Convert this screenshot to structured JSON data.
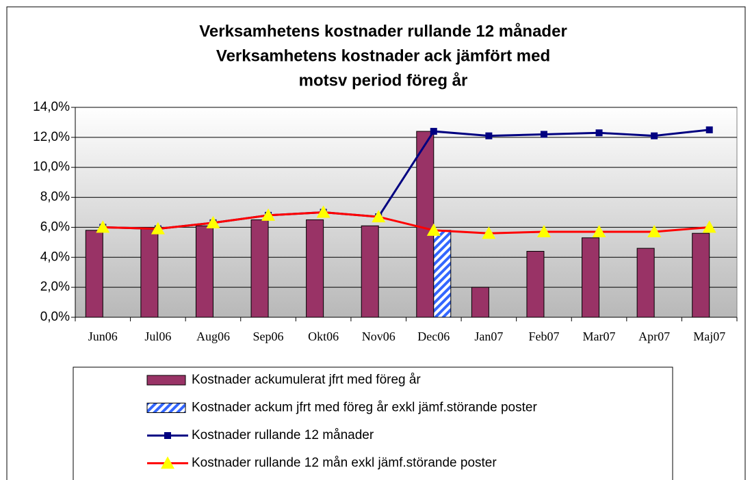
{
  "chart_data": {
    "type": "bar",
    "title": [
      "Verksamhetens kostnader rullande 12 månader",
      "Verksamhetens kostnader ack jämfört med",
      "motsv period föreg år"
    ],
    "categories": [
      "Jun06",
      "Jul06",
      "Aug06",
      "Sep06",
      "Okt06",
      "Nov06",
      "Dec06",
      "Jan07",
      "Feb07",
      "Mar07",
      "Apr07",
      "Maj07"
    ],
    "series": [
      {
        "name": "Kostnader ackumulerat jfrt med föreg år",
        "type": "bar",
        "color": "#993366",
        "values": [
          5.8,
          5.9,
          6.1,
          6.5,
          6.5,
          6.1,
          12.4,
          2.0,
          4.4,
          5.3,
          4.6,
          5.6
        ]
      },
      {
        "name": "Kostnader ackum jfrt med föreg år exkl jämf.störande poster",
        "type": "bar",
        "color": "#3366ff",
        "pattern": "hatch",
        "values": [
          null,
          null,
          null,
          null,
          null,
          null,
          5.8,
          null,
          null,
          null,
          null,
          null
        ]
      },
      {
        "name": "Kostnader rullande 12 månader",
        "type": "line",
        "color": "#000080",
        "marker": "square",
        "marker_color": "#000080",
        "values": [
          6.0,
          5.9,
          6.3,
          6.8,
          7.0,
          6.7,
          12.4,
          12.1,
          12.2,
          12.3,
          12.1,
          12.5
        ]
      },
      {
        "name": "Kostnader rullande 12 mån exkl jämf.störande poster",
        "type": "line",
        "color": "#ff0000",
        "marker": "triangle",
        "marker_color": "#ffff00",
        "values": [
          6.0,
          5.9,
          6.3,
          6.8,
          7.0,
          6.7,
          5.8,
          5.6,
          5.7,
          5.7,
          5.7,
          6.0
        ]
      }
    ],
    "ylim": [
      0,
      14
    ],
    "yticks": [
      {
        "value": 0,
        "label": "0,0%"
      },
      {
        "value": 2,
        "label": "2,0%"
      },
      {
        "value": 4,
        "label": "4,0%"
      },
      {
        "value": 6,
        "label": "6,0%"
      },
      {
        "value": 8,
        "label": "8,0%"
      },
      {
        "value": 10,
        "label": "10,0%"
      },
      {
        "value": 12,
        "label": "12,0%"
      },
      {
        "value": 14,
        "label": "14,0%"
      }
    ],
    "grid": true,
    "legend": "bottom"
  }
}
